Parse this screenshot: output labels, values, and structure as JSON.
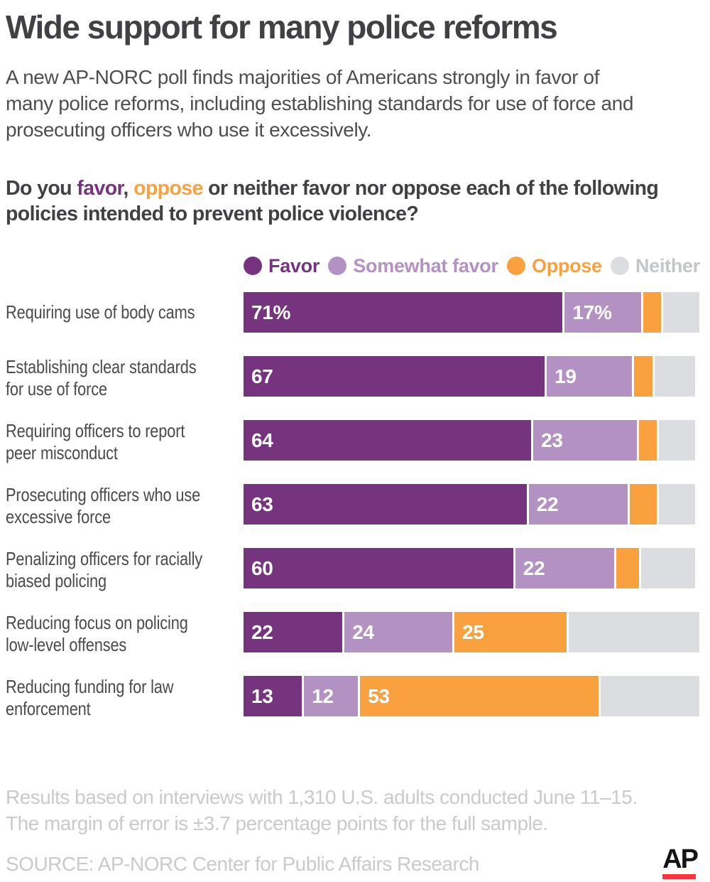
{
  "title": "Wide support for many police reforms",
  "subtitle": "A new AP-NORC poll finds majorities of Americans strongly in favor of\nmany police reforms, including establishing standards for use of force and\nprosecuting officers who use it excessively.",
  "question": {
    "parts": [
      {
        "text": "Do you ",
        "color": "#414045"
      },
      {
        "text": "favor",
        "color": "#76347E"
      },
      {
        "text": ", ",
        "color": "#414045"
      },
      {
        "text": "oppose",
        "color": "#F9A13E"
      },
      {
        "text": " or neither favor nor oppose each of the following\npolicies intended to prevent police violence?",
        "color": "#414045"
      }
    ]
  },
  "legend": [
    {
      "label": "Favor",
      "swatch_color": "#76347E",
      "text_color": "#76347E"
    },
    {
      "label": "Somewhat favor",
      "swatch_color": "#B392C3",
      "text_color": "#B392C3"
    },
    {
      "label": "Oppose",
      "swatch_color": "#F9A13E",
      "text_color": "#F9A13E"
    },
    {
      "label": "Neither",
      "swatch_color": "#DCDDE0",
      "text_color": "#C4C6C8"
    }
  ],
  "chart_data": {
    "type": "bar",
    "orientation": "horizontal",
    "stacked": true,
    "xlim": [
      0,
      100
    ],
    "value_unit": "percent",
    "grid": false,
    "legend_position": "top",
    "categories": [
      "Requiring use of body cams",
      "Establishing clear standards\nfor use of force",
      "Requiring officers to report\npeer misconduct",
      "Prosecuting officers who use\nexcessive force",
      "Penalizing officers for racially\nbiased policing",
      "Reducing focus on policing\nlow-level offenses",
      "Reducing funding for law\nenforcement"
    ],
    "series": [
      {
        "name": "Favor",
        "color": "#76347E",
        "values": [
          71,
          67,
          64,
          63,
          60,
          22,
          13
        ],
        "labels": [
          "71%",
          "67",
          "64",
          "63",
          "60",
          "22",
          "13"
        ]
      },
      {
        "name": "Somewhat favor",
        "color": "#B392C3",
        "values": [
          17,
          19,
          23,
          22,
          22,
          24,
          12
        ],
        "labels": [
          "17%",
          "19",
          "23",
          "22",
          "22",
          "24",
          "12"
        ]
      },
      {
        "name": "Oppose",
        "color": "#F9A13E",
        "values": [
          4,
          4,
          4,
          6,
          5,
          25,
          53
        ],
        "labels": [
          "",
          "",
          "",
          "",
          "",
          "25",
          "53"
        ]
      },
      {
        "name": "Neither",
        "color": "#DCDDE0",
        "values": [
          8,
          9,
          8,
          8,
          12,
          29,
          22
        ],
        "labels": [
          "",
          "",
          "",
          "",
          "",
          "",
          ""
        ]
      }
    ]
  },
  "footnote": {
    "line1": "Results based on interviews with 1,310 U.S. adults conducted June 11–15.",
    "line2": "The margin of error is ±3.7 percentage points for the full sample."
  },
  "source": "SOURCE: AP-NORC Center for Public Affairs Research",
  "logo": {
    "text": "AP",
    "underline_color": "#FF323C"
  }
}
